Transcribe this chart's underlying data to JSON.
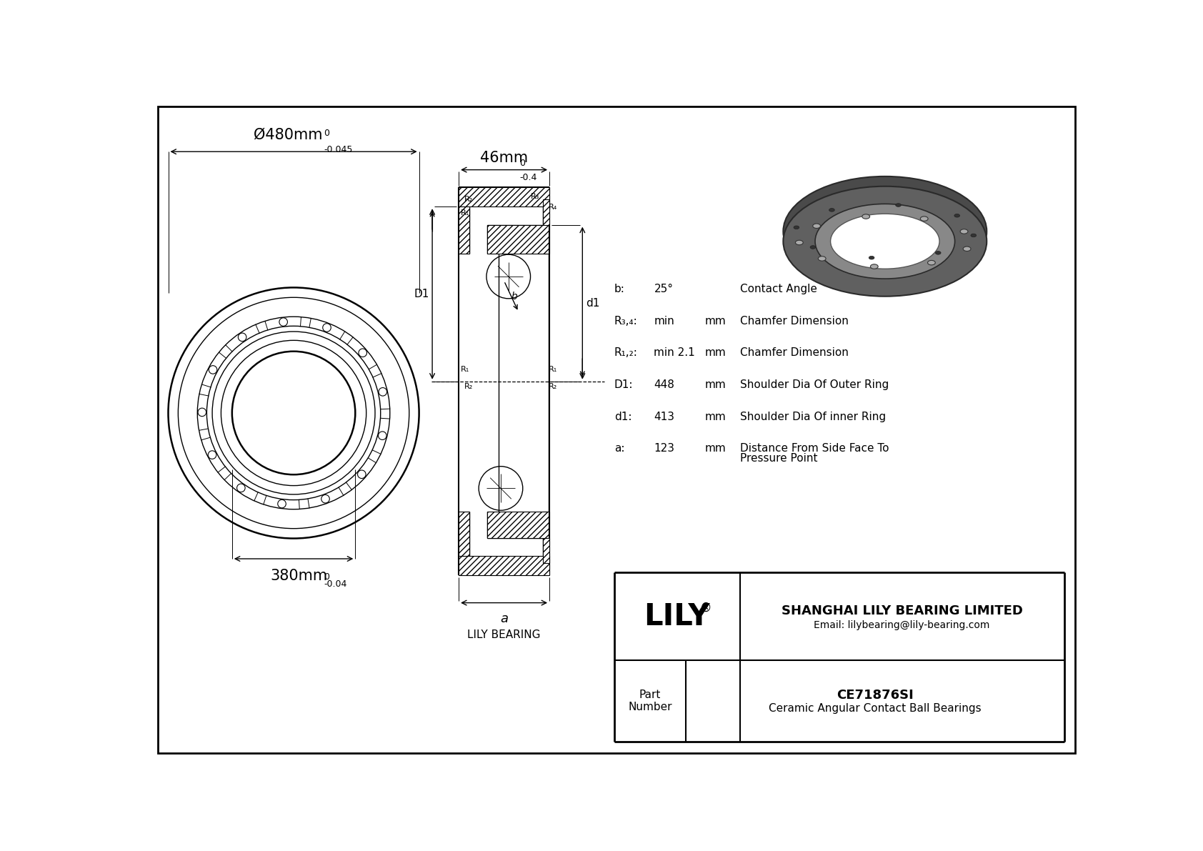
{
  "outer_diameter_label": "Ø480mm",
  "outer_diameter_tol_top": "0",
  "outer_diameter_tol_bot": "-0.045",
  "inner_diameter_label": "380mm",
  "inner_diameter_tol_top": "0",
  "inner_diameter_tol_bot": "-0.04",
  "width_label": "46mm",
  "width_tol_top": "0",
  "width_tol_bot": "-0.4",
  "specs": [
    [
      "b:",
      "25°",
      "",
      "Contact Angle"
    ],
    [
      "R₃,₄:",
      "min",
      "mm",
      "Chamfer Dimension"
    ],
    [
      "R₁,₂:",
      "min 2.1",
      "mm",
      "Chamfer Dimension"
    ],
    [
      "D1:",
      "448",
      "mm",
      "Shoulder Dia Of Outer Ring"
    ],
    [
      "d1:",
      "413",
      "mm",
      "Shoulder Dia Of inner Ring"
    ],
    [
      "a:",
      "123",
      "mm",
      "Distance From Side Face To\nPressure Point"
    ]
  ],
  "lily_label": "LILY BEARING",
  "company": "SHANGHAI LILY BEARING LIMITED",
  "email": "Email: lilybearing@lily-bearing.com",
  "part_number": "CE71876SI",
  "part_type": "Ceramic Angular Contact Ball Bearings"
}
